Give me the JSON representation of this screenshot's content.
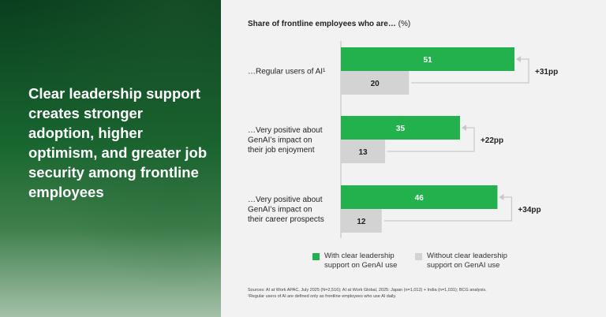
{
  "headline": "Clear leadership support creates stronger adoption, higher optimism, and greater job security among frontline employees",
  "chart_data": {
    "type": "bar",
    "title": "Share of frontline employees who are…",
    "unit": "(%)",
    "categories": [
      "…Regular users of AI¹",
      "…Very positive about GenAI’s impact on their job enjoyment",
      "…Very positive about GenAI’s impact on their career prospects"
    ],
    "category_lines": [
      [
        "…Regular users of AI¹"
      ],
      [
        "…Very positive about",
        "GenAI’s impact on",
        "their job enjoyment"
      ],
      [
        "…Very positive about",
        "GenAI’s impact on",
        "their career prospects"
      ]
    ],
    "series": [
      {
        "name": "With clear leadership support on GenAI use",
        "color": "#22b14c",
        "label_color": "#ffffff",
        "values": [
          51,
          35,
          46
        ]
      },
      {
        "name": "Without clear leadership support on GenAI use",
        "color": "#d3d3d3",
        "label_color": "#222222",
        "values": [
          20,
          13,
          12
        ]
      }
    ],
    "differences": [
      "+31pp",
      "+22pp",
      "+34pp"
    ],
    "xlim": [
      0,
      51
    ]
  },
  "legend": {
    "with_lines": [
      "With clear leadership",
      "support on GenAI use"
    ],
    "without_lines": [
      "Without clear leadership",
      "support on GenAI use"
    ]
  },
  "sources": "Sources: AI at Work APAC, July 2025 (N=2,516); AI at Work Global, 2025: Japan (n=1,012) + India (n=1,031); BCG analysis.",
  "footnote": "¹Regular users of AI are defined only as frontline employees who use AI daily."
}
